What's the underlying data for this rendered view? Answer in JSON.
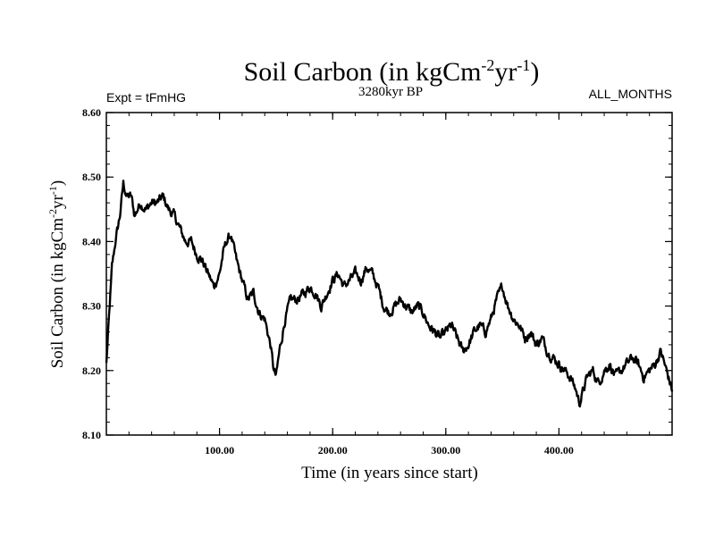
{
  "chart_data": {
    "type": "line",
    "title": "Soil Carbon (in kgCm",
    "title_sup1": "-2",
    "title_mid": "yr",
    "title_sup2": "-1",
    "title_end": ")",
    "left_label": "Expt = tFmHG",
    "center_label": "3280kyr BP",
    "right_label": "ALL_MONTHS",
    "xlabel": "Time (in years since start)",
    "ylabel": "Soil Carbon (in kgCm",
    "ylabel_sup1": "-2",
    "ylabel_mid": "yr",
    "ylabel_sup2": "-1",
    "ylabel_end": ")",
    "xlim": [
      0,
      500
    ],
    "ylim": [
      8.1,
      8.6
    ],
    "x_ticks": [
      100,
      200,
      300,
      400
    ],
    "x_tick_labels": [
      "100.00",
      "200.00",
      "300.00",
      "400.00"
    ],
    "y_ticks": [
      8.1,
      8.2,
      8.3,
      8.4,
      8.5,
      8.6
    ],
    "y_tick_labels": [
      "8.10",
      "8.20",
      "8.30",
      "8.40",
      "8.50",
      "8.60"
    ],
    "series": [
      {
        "name": "Soil Carbon",
        "color": "#000000",
        "x": [
          0,
          2,
          5,
          8,
          12,
          15,
          18,
          22,
          25,
          30,
          35,
          40,
          45,
          50,
          55,
          60,
          65,
          70,
          75,
          80,
          85,
          90,
          95,
          100,
          103,
          106,
          110,
          115,
          120,
          125,
          130,
          135,
          140,
          145,
          148,
          150,
          153,
          158,
          163,
          168,
          175,
          180,
          185,
          190,
          195,
          200,
          205,
          210,
          215,
          220,
          225,
          230,
          235,
          240,
          245,
          250,
          255,
          260,
          265,
          270,
          275,
          280,
          285,
          290,
          295,
          300,
          305,
          310,
          315,
          320,
          325,
          330,
          335,
          340,
          345,
          350,
          355,
          360,
          365,
          370,
          375,
          380,
          385,
          390,
          395,
          400,
          405,
          410,
          415,
          418,
          420,
          425,
          430,
          435,
          440,
          445,
          450,
          455,
          460,
          465,
          470,
          475,
          480,
          485,
          490,
          495,
          500
        ],
        "values": [
          8.21,
          8.27,
          8.36,
          8.4,
          8.44,
          8.49,
          8.47,
          8.47,
          8.44,
          8.46,
          8.45,
          8.46,
          8.46,
          8.47,
          8.45,
          8.44,
          8.42,
          8.4,
          8.4,
          8.38,
          8.37,
          8.35,
          8.33,
          8.35,
          8.38,
          8.4,
          8.41,
          8.37,
          8.34,
          8.31,
          8.32,
          8.29,
          8.28,
          8.24,
          8.2,
          8.19,
          8.23,
          8.28,
          8.31,
          8.31,
          8.32,
          8.33,
          8.32,
          8.3,
          8.32,
          8.34,
          8.35,
          8.33,
          8.34,
          8.35,
          8.34,
          8.36,
          8.35,
          8.33,
          8.3,
          8.29,
          8.3,
          8.31,
          8.3,
          8.29,
          8.3,
          8.29,
          8.27,
          8.26,
          8.25,
          8.26,
          8.27,
          8.25,
          8.23,
          8.24,
          8.26,
          8.27,
          8.26,
          8.28,
          8.31,
          8.33,
          8.3,
          8.28,
          8.27,
          8.25,
          8.26,
          8.24,
          8.25,
          8.23,
          8.22,
          8.21,
          8.2,
          8.19,
          8.17,
          8.15,
          8.16,
          8.19,
          8.2,
          8.18,
          8.2,
          8.21,
          8.19,
          8.2,
          8.21,
          8.22,
          8.21,
          8.19,
          8.2,
          8.21,
          8.23,
          8.2,
          8.17
        ]
      }
    ]
  }
}
